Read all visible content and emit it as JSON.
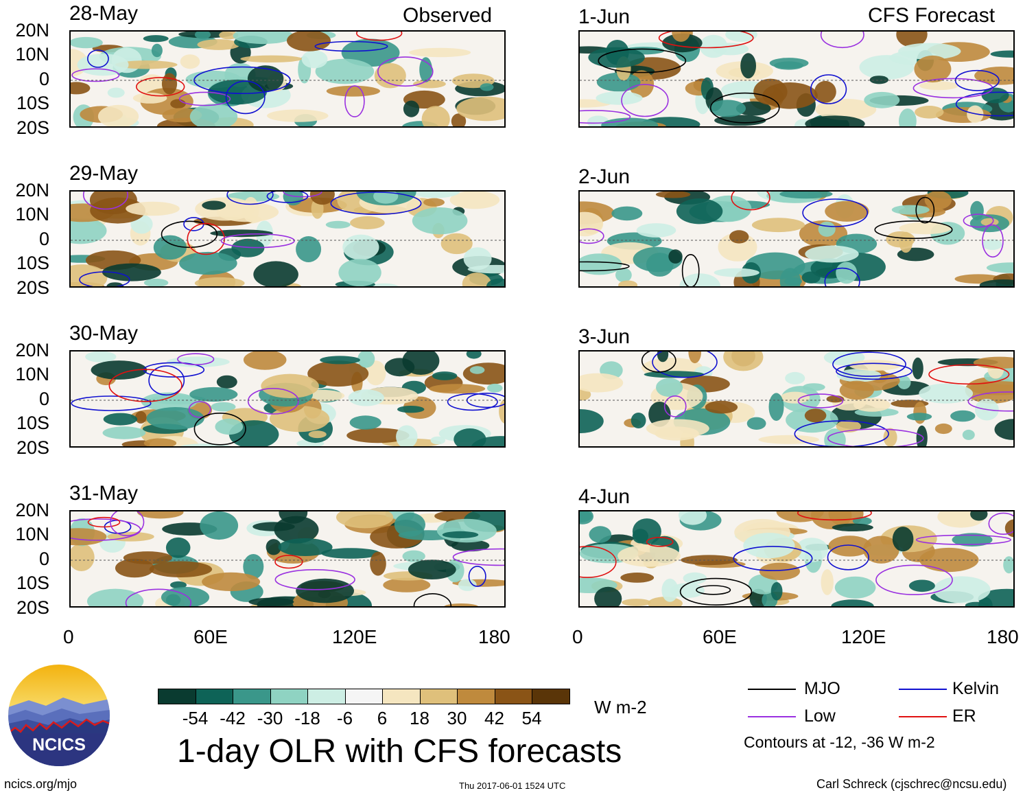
{
  "headers": {
    "observed": "Observed",
    "forecast": "CFS Forecast"
  },
  "observed_dates": [
    "28-May",
    "29-May",
    "30-May",
    "31-May"
  ],
  "forecast_dates": [
    "1-Jun",
    "2-Jun",
    "3-Jun",
    "4-Jun"
  ],
  "lat_labels": [
    "20N",
    "10N",
    "0",
    "10S",
    "20S"
  ],
  "lon_labels": [
    "0",
    "60E",
    "120E",
    "180"
  ],
  "colorbar": {
    "ticks": [
      "-54",
      "-42",
      "-30",
      "-18",
      "-6",
      "6",
      "18",
      "30",
      "42",
      "54"
    ],
    "colors": [
      "#0a3b30",
      "#0e6357",
      "#3a978a",
      "#8fd3c2",
      "#cdeee4",
      "#f5f5f5",
      "#f5e6c0",
      "#dfc07b",
      "#bf8a3d",
      "#8a5416",
      "#5a3508"
    ],
    "units": "W m-2"
  },
  "title": "1-day OLR with CFS forecasts",
  "logo": {
    "text": "NCICS"
  },
  "legend": {
    "items": [
      {
        "label": "MJO",
        "color": "#000000"
      },
      {
        "label": "Kelvin",
        "color": "#1010d0"
      },
      {
        "label": "Low",
        "color": "#9a30e0"
      },
      {
        "label": "ER",
        "color": "#e01010"
      }
    ],
    "note": "Contours at -12, -36 W m-2"
  },
  "footer": {
    "url": "ncics.org/mjo",
    "timestamp": "Thu 2017-06-01 1524 UTC",
    "credit": "Carl Schreck (cjschrec@ncsu.edu)"
  }
}
